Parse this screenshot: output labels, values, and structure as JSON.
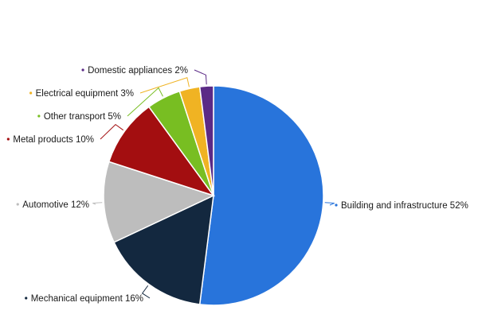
{
  "chart_data": {
    "type": "pie",
    "title": "",
    "slices": [
      {
        "label": "Building and infrastructure",
        "value": 52,
        "value_text": "52%",
        "color": "#2874db"
      },
      {
        "label": "Mechanical equipment",
        "value": 16,
        "value_text": "16%",
        "color": "#13283f"
      },
      {
        "label": "Automotive",
        "value": 12,
        "value_text": "12%",
        "color": "#bdbdbd"
      },
      {
        "label": "Metal products",
        "value": 10,
        "value_text": "10%",
        "color": "#a30e10"
      },
      {
        "label": "Other transport",
        "value": 5,
        "value_text": "5%",
        "color": "#78be22"
      },
      {
        "label": "Electrical equipment",
        "value": 3,
        "value_text": "3%",
        "color": "#f0b323"
      },
      {
        "label": "Domestic appliances",
        "value": 2,
        "value_text": "2%",
        "color": "#5b2a86"
      }
    ]
  }
}
